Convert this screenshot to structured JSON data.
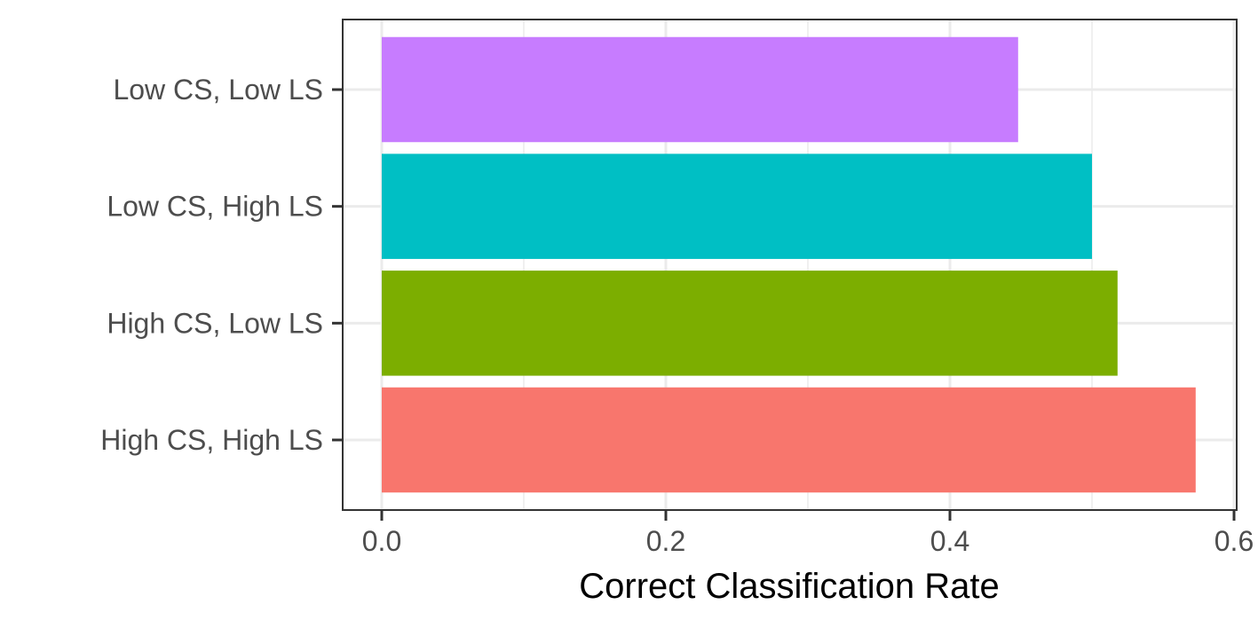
{
  "chart_data": {
    "type": "bar",
    "orientation": "horizontal",
    "title": "",
    "xlabel": "Correct Classification Rate",
    "ylabel": "",
    "xlim": [
      0,
      0.6
    ],
    "xticks": [
      "0.0",
      "0.2",
      "0.4",
      "0.6"
    ],
    "grid": true,
    "legend": "none",
    "categories": [
      "High CS, High LS",
      "High CS, Low LS",
      "Low CS, High LS",
      "Low CS, Low LS"
    ],
    "values": [
      0.573,
      0.518,
      0.5,
      0.448
    ],
    "colors": [
      "#F8766D",
      "#7CAE00",
      "#00BFC4",
      "#C77CFF"
    ]
  }
}
